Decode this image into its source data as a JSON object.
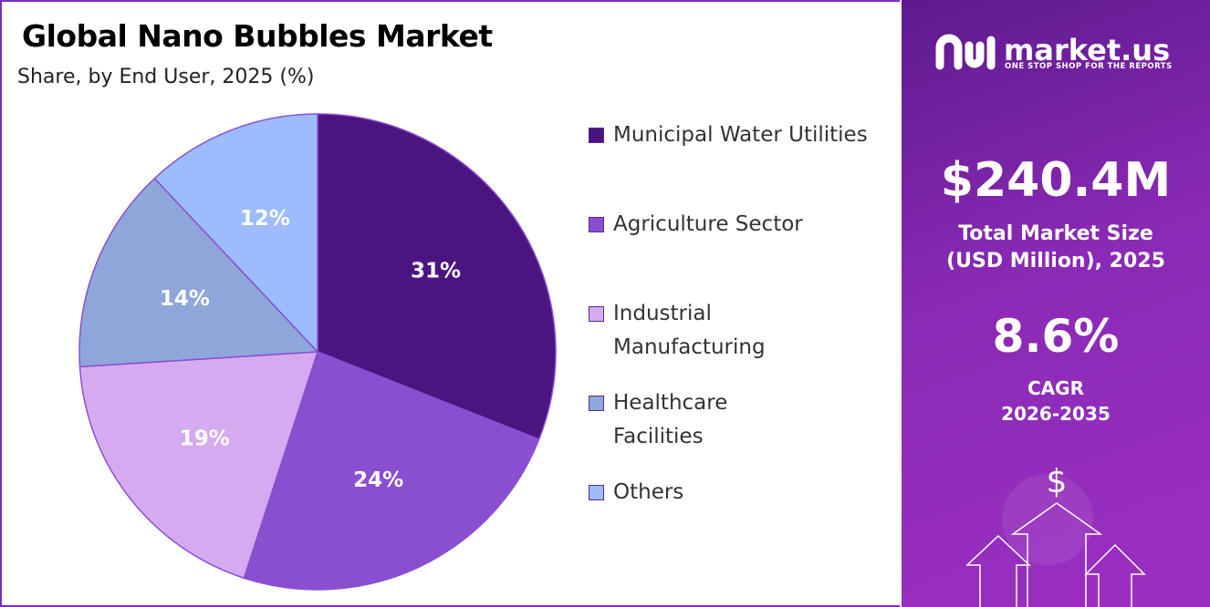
{
  "chart_data": {
    "type": "pie",
    "title": "Global Nano Bubbles Market",
    "subtitle": "Share, by End User, 2025 (%)",
    "categories": [
      "Municipal Water Utilities",
      "Agriculture Sector",
      "Industrial Manufacturing",
      "Healthcare Facilities",
      "Others"
    ],
    "values": [
      31,
      24,
      19,
      14,
      12
    ],
    "value_labels": [
      "31%",
      "24%",
      "19%",
      "14%",
      "12%"
    ],
    "colors": [
      "#4b1581",
      "#8a4fd0",
      "#d6aaf0",
      "#8fa6da",
      "#9cbcff"
    ],
    "legend": "right"
  },
  "panel": {
    "brand": "market.us",
    "tagline": "ONE STOP SHOP FOR THE REPORTS",
    "market_size": "$240.4M",
    "market_size_label": "Total Market Size (USD Million), 2025",
    "cagr": "8.6%",
    "cagr_label": "CAGR",
    "cagr_years": "2026-2035"
  }
}
